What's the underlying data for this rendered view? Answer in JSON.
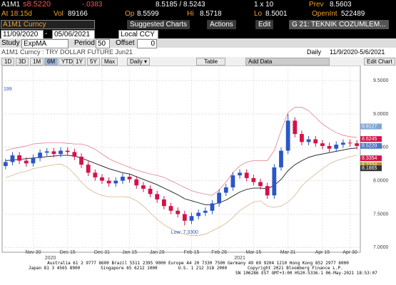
{
  "quote": {
    "ticker": "A1M1",
    "last": "s8.5220",
    "change": "-.0383",
    "bid_ask": "8.5185 / 8.5243",
    "size": "1 x 10",
    "prev_label": "Prev",
    "prev": "8.5603",
    "time": "At 18:15d",
    "vol_label": "Vol",
    "vol": "89166",
    "open_label": "Op",
    "open": "8.5599",
    "high_label": "Hi",
    "high": "8.5718",
    "low_label": "Lo",
    "low": "8.5001",
    "oi_label": "OpenInt",
    "oi": "522489"
  },
  "toolbar": {
    "security": "A1M1 Curncy",
    "suggested": "Suggested Charts",
    "actions": "Actions",
    "edit": "Edit",
    "page": "G 21: TEKNIK COZUMLEM..."
  },
  "range": {
    "start": "11/09/2020",
    "separator": "-",
    "end": "05/06/2021",
    "currency": "Local CCY"
  },
  "study": {
    "label": "Study",
    "name": "ExpMA",
    "period_label": "Period",
    "period": "50",
    "offset_label": "Offset",
    "offset": "0"
  },
  "chart_header": {
    "title": "A1M1 Curncy : TRY DOLLAR FUTURE Jun21",
    "frequency": "Daily",
    "dates": "11/9/2020-5/6/2021"
  },
  "controls": {
    "periods": [
      "1D",
      "3D",
      "1M",
      "6M",
      "YTD",
      "1Y",
      "5Y",
      "Max"
    ],
    "freq_select": "Daily ▾",
    "table": "Table",
    "add_data": "Add Data",
    "edit_chart": "Edit Chart"
  },
  "footer": [
    "Australia 61 2 9777 8600 Brazil 5511 2395 9000 Europe 44 20 7330 7500 Germany 49 69 9204 1210 Hong Kong 852 2977 6000",
    "Japan 81 3 4565 8900        Singapore 65 6212 1000        U.S. 1 212 318 2000        Copyright 2021 Bloomberg Finance L.P.",
    "SN 106286 EST GMT+3:00 H520-5336-1 06-May-2021 18:53:07"
  ],
  "chart_data": {
    "type": "candlestick",
    "categories": [
      null,
      null,
      null,
      null,
      "Nov 30",
      null,
      null,
      null,
      null,
      "Dec 15",
      null,
      null,
      null,
      null,
      "Dec 31",
      null,
      null,
      null,
      "Jan 15",
      null,
      null,
      null,
      "Jan 29",
      null,
      null,
      null,
      null,
      "Feb 15",
      null,
      null,
      null,
      "Feb 26",
      null,
      null,
      null,
      null,
      "Mar 15",
      null,
      null,
      null,
      null,
      "Mar 31",
      null,
      null,
      null,
      null,
      "Apr 15",
      null,
      null,
      null,
      "Apr 30",
      null
    ],
    "years": [
      "2020",
      "2021"
    ],
    "open": [
      8.22,
      8.28,
      8.38,
      8.3,
      8.26,
      8.34,
      8.42,
      8.44,
      8.4,
      8.45,
      8.43,
      8.36,
      8.24,
      8.12,
      8.05,
      8.0,
      7.96,
      8.0,
      8.06,
      8.02,
      7.93,
      7.88,
      7.8,
      7.72,
      7.62,
      7.55,
      7.5,
      7.4,
      7.47,
      7.52,
      7.55,
      7.66,
      7.82,
      7.9,
      8.08,
      8.12,
      8.04,
      7.98,
      7.92,
      7.78,
      8.2,
      8.45,
      8.9,
      8.7,
      8.58,
      8.62,
      8.56,
      8.52,
      8.48,
      8.54,
      8.57,
      8.56
    ],
    "high": [
      8.33,
      8.43,
      8.43,
      8.35,
      8.39,
      8.47,
      8.49,
      8.49,
      8.5,
      8.5,
      8.48,
      8.41,
      8.29,
      8.17,
      8.1,
      8.05,
      8.05,
      8.11,
      8.11,
      8.07,
      7.98,
      7.93,
      7.85,
      7.77,
      7.67,
      7.6,
      7.55,
      7.52,
      7.57,
      7.6,
      7.71,
      7.87,
      7.95,
      8.13,
      8.17,
      8.17,
      8.09,
      8.03,
      7.97,
      8.25,
      8.5,
      9.0,
      8.95,
      8.75,
      8.67,
      8.67,
      8.61,
      8.57,
      8.59,
      8.62,
      8.62,
      8.61
    ],
    "low": [
      8.17,
      8.23,
      8.25,
      8.21,
      8.21,
      8.29,
      8.37,
      8.35,
      8.35,
      8.38,
      8.31,
      8.19,
      8.07,
      8.0,
      7.95,
      7.91,
      7.91,
      7.95,
      7.97,
      7.88,
      7.83,
      7.75,
      7.67,
      7.57,
      7.5,
      7.45,
      7.33,
      7.35,
      7.42,
      7.47,
      7.5,
      7.61,
      7.77,
      7.85,
      8.03,
      7.99,
      7.93,
      7.87,
      7.73,
      7.73,
      8.15,
      8.4,
      8.65,
      8.53,
      8.53,
      8.51,
      8.47,
      8.43,
      8.43,
      8.49,
      8.51,
      8.47
    ],
    "close": [
      8.28,
      8.38,
      8.3,
      8.26,
      8.34,
      8.42,
      8.44,
      8.4,
      8.45,
      8.43,
      8.36,
      8.24,
      8.12,
      8.05,
      8.0,
      7.96,
      8.0,
      8.06,
      8.02,
      7.93,
      7.88,
      7.8,
      7.72,
      7.62,
      7.55,
      7.5,
      7.4,
      7.47,
      7.52,
      7.55,
      7.66,
      7.82,
      7.9,
      8.08,
      8.12,
      8.04,
      7.98,
      7.92,
      7.78,
      8.2,
      8.45,
      8.9,
      8.7,
      8.58,
      8.62,
      8.56,
      8.52,
      8.48,
      8.54,
      8.57,
      8.56,
      8.52
    ],
    "up_color": "#2a56c6",
    "down_color": "#d3124a",
    "series": [
      {
        "color": "#333333",
        "values": [
          8.3,
          8.31,
          8.32,
          8.33,
          8.34,
          8.35,
          8.36,
          8.37,
          8.38,
          8.38,
          8.37,
          8.34,
          8.3,
          8.26,
          8.22,
          8.18,
          8.15,
          8.12,
          8.1,
          8.06,
          8.02,
          7.98,
          7.94,
          7.89,
          7.84,
          7.79,
          7.73,
          7.7,
          7.67,
          7.64,
          7.64,
          7.67,
          7.71,
          7.77,
          7.83,
          7.87,
          7.89,
          7.89,
          7.88,
          7.93,
          8.02,
          8.15,
          8.24,
          8.3,
          8.35,
          8.38,
          8.4,
          8.42,
          8.44,
          8.46,
          8.48,
          8.49
        ]
      },
      {
        "color": "#e0808a",
        "values": [
          8.45,
          8.48,
          8.5,
          8.52,
          8.55,
          8.56,
          8.57,
          8.57,
          8.57,
          8.56,
          8.55,
          8.55,
          8.52,
          8.47,
          8.4,
          8.33,
          8.28,
          8.24,
          8.2,
          8.16,
          8.13,
          8.1,
          8.08,
          8.05,
          8.0,
          7.95,
          7.9,
          7.85,
          7.82,
          7.8,
          7.78,
          7.86,
          7.98,
          8.12,
          8.22,
          8.28,
          8.3,
          8.3,
          8.3,
          8.45,
          8.75,
          9.02,
          9.1,
          9.1,
          9.05,
          8.95,
          8.85,
          8.78,
          8.72,
          8.68,
          8.66,
          8.65
        ]
      },
      {
        "color": "#d8b48a",
        "values": [
          8.05,
          8.08,
          8.12,
          8.14,
          8.18,
          8.2,
          8.22,
          8.24,
          8.25,
          8.2,
          8.1,
          7.98,
          7.88,
          7.82,
          7.78,
          7.76,
          7.76,
          7.76,
          7.75,
          7.7,
          7.62,
          7.52,
          7.42,
          7.34,
          7.28,
          7.23,
          7.2,
          7.18,
          7.18,
          7.2,
          7.25,
          7.3,
          7.36,
          7.45,
          7.55,
          7.62,
          7.68,
          7.7,
          7.62,
          7.6,
          7.62,
          7.68,
          7.78,
          7.92,
          8.02,
          8.1,
          8.18,
          8.25,
          8.3,
          8.33,
          8.36,
          8.38
        ]
      }
    ],
    "ylim": [
      6.95,
      9.64
    ],
    "yticks": [
      {
        "value": 7,
        "label": "7.0000"
      },
      {
        "value": 7.5,
        "label": "7.5000"
      },
      {
        "value": 8,
        "label": "8.0000"
      },
      {
        "value": 8.5,
        "label": "8.5000"
      },
      {
        "value": 9,
        "label": "9.0000"
      },
      {
        "value": 9.5,
        "label": "9.5000"
      }
    ],
    "price_tags": [
      {
        "value": 8.8127,
        "color": "#7fa6d6"
      },
      {
        "value": 8.6245,
        "color": "#d3124a"
      },
      {
        "value": 8.522,
        "label": "8.5220",
        "color": "#4a78c8"
      },
      {
        "value": 8.3354,
        "color": "#d3124a"
      },
      {
        "value": 8.2334,
        "color": "#b8902a"
      },
      {
        "value": 8.1865,
        "color": "#333333"
      }
    ],
    "low_label": "Low: 7.3300",
    "side_label": "199",
    "grid": true
  }
}
